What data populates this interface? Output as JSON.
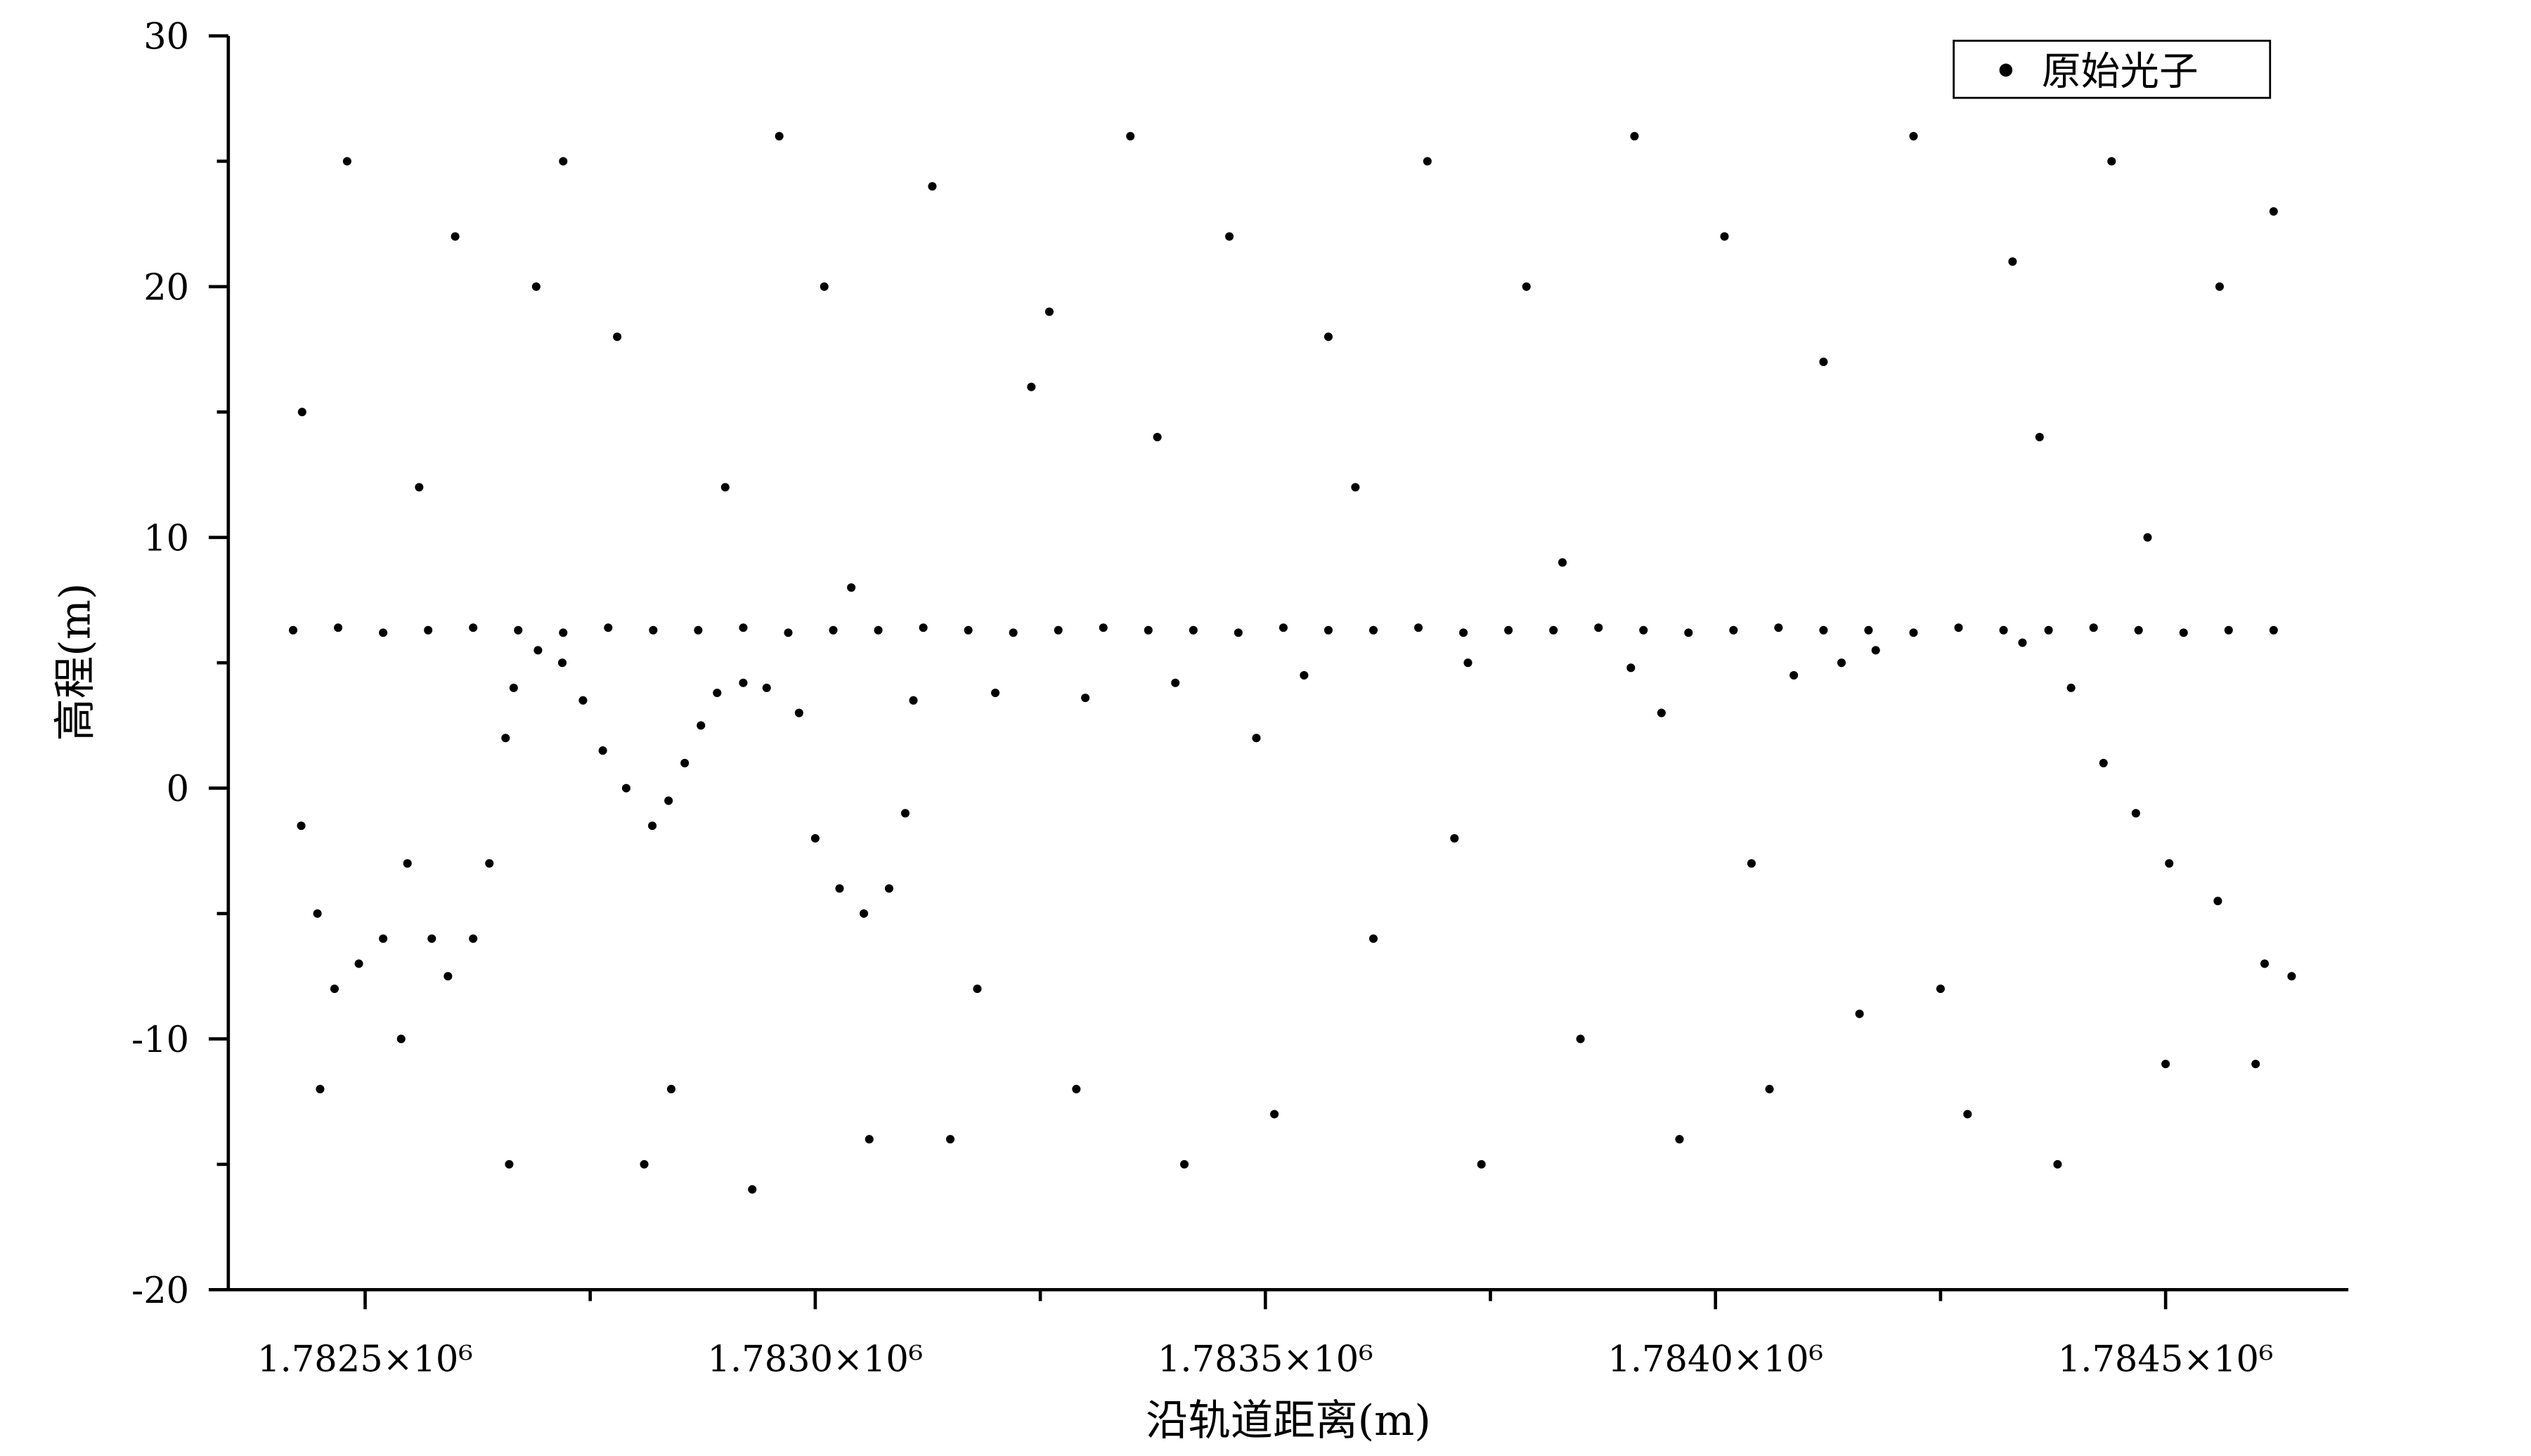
{
  "chart_data": {
    "type": "scatter",
    "x_label": "沿轨道距离(m)",
    "y_label": "高程(m)",
    "xlim": [
      1782348,
      1784703
    ],
    "ylim": [
      -20,
      30
    ],
    "xticks": [
      {
        "value": 1782500,
        "label": "1.7825×10⁶"
      },
      {
        "value": 1783000,
        "label": "1.7830×10⁶"
      },
      {
        "value": 1783500,
        "label": "1.7835×10⁶"
      },
      {
        "value": 1784000,
        "label": "1.7840×10⁶"
      },
      {
        "value": 1784500,
        "label": "1.7845×10⁶"
      }
    ],
    "xminorticks": [
      1782750,
      1783250,
      1783750,
      1784250
    ],
    "yticks": [
      -20,
      -10,
      0,
      10,
      20,
      30
    ],
    "yminorticks": [
      -15,
      -5,
      5,
      15,
      25
    ],
    "legend": "upper right",
    "series": [
      {
        "name": "原始光子",
        "color": "#000000",
        "x": [
          1782420,
          1782470,
          1782520,
          1782570,
          1782620,
          1782670,
          1782720,
          1782770,
          1782820,
          1782870,
          1782920,
          1782970,
          1783020,
          1783070,
          1783120,
          1783170,
          1783220,
          1783270,
          1783320,
          1783370,
          1783420,
          1783470,
          1783520,
          1783570,
          1783620,
          1783670,
          1783720,
          1783770,
          1783820,
          1783870,
          1783920,
          1783970,
          1784020,
          1784070,
          1784120,
          1784170,
          1784220,
          1784270,
          1784320,
          1784370,
          1784420,
          1784470,
          1784520,
          1784570,
          1784620,
          1782429,
          1782447,
          1782466,
          1782493,
          1782520,
          1782547,
          1782574,
          1782592,
          1782620,
          1782638,
          1782656,
          1782665,
          1782692,
          1782719,
          1782742,
          1782764,
          1782790,
          1782819,
          1782837,
          1782855,
          1782873,
          1782891,
          1782920,
          1782946,
          1782982,
          1783000,
          1783027,
          1783054,
          1783082,
          1783100,
          1783109,
          1783200,
          1783300,
          1783400,
          1783543,
          1783725,
          1783906,
          1784087,
          1784178,
          1784341,
          1784395,
          1784431,
          1784467,
          1784504,
          1784558,
          1784610,
          1784640,
          1782430,
          1782480,
          1782540,
          1782600,
          1782660,
          1782720,
          1782780,
          1782840,
          1782900,
          1782960,
          1783010,
          1783060,
          1783130,
          1783180,
          1783240,
          1783290,
          1783350,
          1783410,
          1783460,
          1783510,
          1783570,
          1783620,
          1783680,
          1783740,
          1783790,
          1783850,
          1783910,
          1783960,
          1784010,
          1784060,
          1784120,
          1784160,
          1784220,
          1784280,
          1784330,
          1784380,
          1784440,
          1784500,
          1784560,
          1784620,
          1782450,
          1782560,
          1782690,
          1782810,
          1782930,
          1783040,
          1783150,
          1783260,
          1783380,
          1783490,
          1783600,
          1783710,
          1783830,
          1783940,
          1784040,
          1784140,
          1784250,
          1784360,
          1784480,
          1784600
        ],
        "values": [
          6.3,
          6.4,
          6.2,
          6.3,
          6.4,
          6.3,
          6.2,
          6.4,
          6.3,
          6.3,
          6.4,
          6.2,
          6.3,
          6.3,
          6.4,
          6.3,
          6.2,
          6.3,
          6.4,
          6.3,
          6.3,
          6.2,
          6.4,
          6.3,
          6.3,
          6.4,
          6.2,
          6.3,
          6.3,
          6.4,
          6.3,
          6.2,
          6.3,
          6.4,
          6.3,
          6.3,
          6.2,
          6.4,
          6.3,
          6.3,
          6.4,
          6.3,
          6.2,
          6.3,
          6.3,
          -1.5,
          -5,
          -8,
          -7,
          -6,
          -3,
          -6,
          -7.5,
          -6,
          -3,
          2,
          4,
          5.5,
          5,
          3.5,
          1.5,
          0,
          -1.5,
          -0.5,
          1,
          2.5,
          3.8,
          4.2,
          4,
          3,
          -2,
          -4,
          -5,
          -4,
          -1,
          3.5,
          3.8,
          3.6,
          4.2,
          4.5,
          5,
          4.8,
          4.5,
          5.5,
          5.8,
          4,
          1,
          -1,
          -3,
          -4.5,
          -7,
          -7.5,
          15,
          25,
          -10,
          22,
          -15,
          25,
          18,
          -12,
          12,
          26,
          20,
          -14,
          24,
          -8,
          16,
          -12,
          26,
          -15,
          22,
          -13,
          18,
          -6,
          25,
          -15,
          20,
          -10,
          26,
          -14,
          22,
          -12,
          17,
          -9,
          26,
          -13,
          21,
          -15,
          25,
          -11,
          20,
          23,
          -12,
          12,
          20,
          -15,
          -16,
          8,
          -14,
          19,
          14,
          2,
          12,
          -2,
          9,
          3,
          -3,
          5,
          -8,
          14,
          10,
          -11
        ]
      }
    ]
  }
}
